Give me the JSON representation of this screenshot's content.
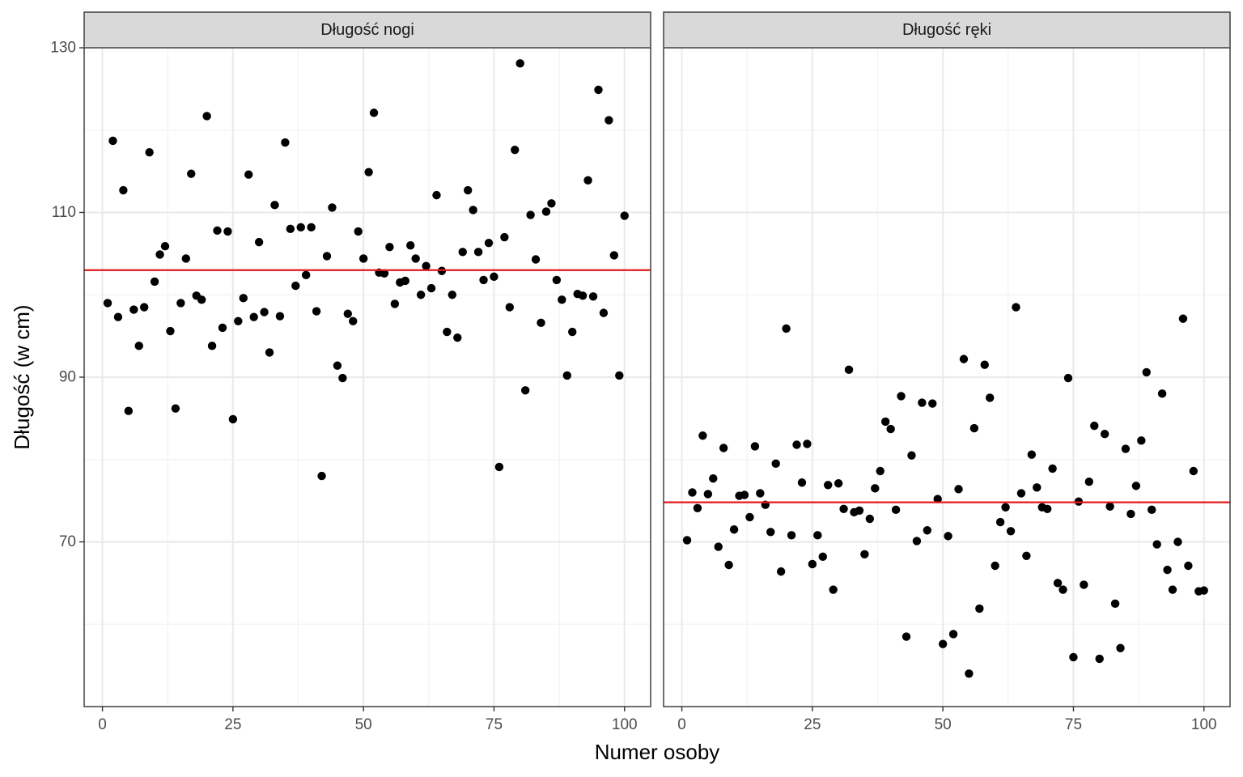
{
  "chart_data": {
    "type": "scatter",
    "xlabel": "Numer osoby",
    "ylabel": "Długość (w cm)",
    "xlim": [
      -3.5,
      105
    ],
    "ylim": [
      50,
      130
    ],
    "x_ticks": [
      0,
      25,
      50,
      75,
      100
    ],
    "y_ticks": [
      70,
      90,
      110,
      130
    ],
    "y_minor": [
      60,
      80,
      100,
      120
    ],
    "x_minor": [
      12.5,
      37.5,
      62.5,
      87.5
    ],
    "grid": true,
    "colors": {
      "points": "#000000",
      "mean_line": "#e31a1c",
      "strip_fill": "#d9d9d9",
      "grid": "#ebebeb"
    },
    "panels": [
      {
        "title": "Długość nogi",
        "mean": 103.0,
        "x": [
          1,
          2,
          3,
          4,
          5,
          6,
          7,
          8,
          9,
          10,
          11,
          12,
          13,
          14,
          15,
          16,
          17,
          18,
          19,
          20,
          21,
          22,
          23,
          24,
          25,
          26,
          27,
          28,
          29,
          30,
          31,
          32,
          33,
          34,
          35,
          36,
          37,
          38,
          39,
          40,
          41,
          42,
          43,
          44,
          45,
          46,
          47,
          48,
          49,
          50,
          51,
          52,
          53,
          54,
          55,
          56,
          57,
          58,
          59,
          60,
          61,
          62,
          63,
          64,
          65,
          66,
          67,
          68,
          69,
          70,
          71,
          72,
          73,
          74,
          75,
          76,
          77,
          78,
          79,
          80,
          81,
          82,
          83,
          84,
          85,
          86,
          87,
          88,
          89,
          90,
          91,
          92,
          93,
          94,
          95,
          96,
          97,
          98,
          99,
          100
        ],
        "y": [
          99,
          118.7,
          97.3,
          112.7,
          85.9,
          98.2,
          93.8,
          98.5,
          117.3,
          101.6,
          104.9,
          105.9,
          95.6,
          86.2,
          99,
          104.4,
          114.7,
          99.9,
          99.4,
          121.7,
          93.8,
          107.8,
          96,
          107.7,
          84.9,
          96.8,
          99.6,
          114.6,
          97.3,
          106.4,
          97.9,
          93,
          110.9,
          97.4,
          118.5,
          108,
          101.1,
          108.2,
          102.4,
          108.2,
          98,
          78,
          104.7,
          110.6,
          91.4,
          89.9,
          97.7,
          96.8,
          107.7,
          104.4,
          114.9,
          122.1,
          102.7,
          102.6,
          105.8,
          98.9,
          101.5,
          101.7,
          106,
          104.4,
          100,
          103.5,
          100.8,
          112.1,
          102.9,
          95.5,
          100,
          94.8,
          105.2,
          112.7,
          110.3,
          105.2,
          101.8,
          106.3,
          102.2,
          79.1,
          107,
          98.5,
          117.6,
          128.1,
          88.4,
          109.7,
          104.3,
          96.6,
          110.1,
          111.1,
          101.8,
          99.4,
          90.2,
          95.5,
          100.1,
          99.9,
          113.9,
          99.8,
          124.9,
          97.8,
          121.2,
          104.8,
          90.2,
          109.6
        ]
      },
      {
        "title": "Długość ręki",
        "mean": 74.8,
        "x": [
          1,
          2,
          3,
          4,
          5,
          6,
          7,
          8,
          9,
          10,
          11,
          12,
          13,
          14,
          15,
          16,
          17,
          18,
          19,
          20,
          21,
          22,
          23,
          24,
          25,
          26,
          27,
          28,
          29,
          30,
          31,
          32,
          33,
          34,
          35,
          36,
          37,
          38,
          39,
          40,
          41,
          42,
          43,
          44,
          45,
          46,
          47,
          48,
          49,
          50,
          51,
          52,
          53,
          54,
          55,
          56,
          57,
          58,
          59,
          60,
          61,
          62,
          63,
          64,
          65,
          66,
          67,
          68,
          69,
          70,
          71,
          72,
          73,
          74,
          75,
          76,
          77,
          78,
          79,
          80,
          81,
          82,
          83,
          84,
          85,
          86,
          87,
          88,
          89,
          90,
          91,
          92,
          93,
          94,
          95,
          96,
          97,
          98,
          99,
          100
        ],
        "y": [
          70.2,
          76,
          74.1,
          82.9,
          75.8,
          77.7,
          69.4,
          81.4,
          67.2,
          71.5,
          75.6,
          75.7,
          73,
          81.6,
          75.9,
          74.5,
          71.2,
          79.5,
          66.4,
          95.9,
          70.8,
          81.8,
          77.2,
          81.9,
          67.3,
          70.8,
          68.2,
          76.9,
          64.2,
          77.1,
          74,
          90.9,
          73.6,
          73.8,
          68.5,
          72.8,
          76.5,
          78.6,
          84.6,
          83.7,
          73.9,
          87.7,
          58.5,
          80.5,
          70.1,
          86.9,
          71.4,
          86.8,
          75.2,
          57.6,
          70.7,
          58.8,
          76.4,
          92.2,
          54,
          83.8,
          61.9,
          91.5,
          87.5,
          67.1,
          72.4,
          74.2,
          71.3,
          98.5,
          75.9,
          68.3,
          80.6,
          76.6,
          74.2,
          74,
          78.9,
          65,
          64.2,
          89.9,
          56,
          74.9,
          64.8,
          77.3,
          84.1,
          55.8,
          83.1,
          74.3,
          62.5,
          57.1,
          81.3,
          73.4,
          76.8,
          82.3,
          90.6,
          73.9,
          69.7,
          88,
          66.6,
          64.2,
          70,
          97.1,
          67.1,
          78.6,
          64,
          64.1
        ]
      }
    ]
  }
}
